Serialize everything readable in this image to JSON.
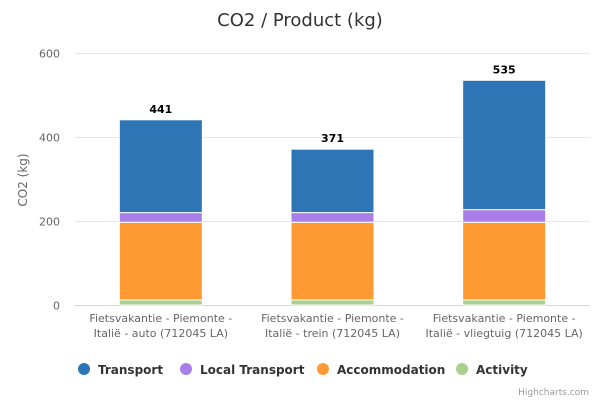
{
  "chart_data": {
    "type": "bar",
    "stacked": true,
    "title": "CO2 / Product (kg)",
    "xlabel": "",
    "ylabel": "CO2 (kg)",
    "ylim": [
      0,
      600
    ],
    "yticks": [
      "0",
      "200",
      "400",
      "600"
    ],
    "grid": true,
    "legend_position": "bottom",
    "categories": [
      [
        "Fietsvakantie - Piemonte -",
        "Italië - auto (712045 LA)"
      ],
      [
        "Fietsvakantie - Piemonte -",
        "Italië - trein (712045 LA)"
      ],
      [
        "Fietsvakantie - Piemonte -",
        "Italië - vliegtuig (712045 LA)"
      ]
    ],
    "totals": [
      "441",
      "371",
      "535"
    ],
    "series": [
      {
        "name": "Activity",
        "color": "#a9d18e",
        "values": [
          12,
          12,
          12
        ]
      },
      {
        "name": "Accommodation",
        "color": "#ff9a33",
        "values": [
          185,
          185,
          185
        ]
      },
      {
        "name": "Local Transport",
        "color": "#a97ee8",
        "values": [
          23,
          23,
          30
        ]
      },
      {
        "name": "Transport",
        "color": "#2e75b6",
        "values": [
          221,
          151,
          308
        ]
      }
    ],
    "legend_order": [
      "Transport",
      "Local Transport",
      "Accommodation",
      "Activity"
    ],
    "credits": "Highcharts.com"
  }
}
